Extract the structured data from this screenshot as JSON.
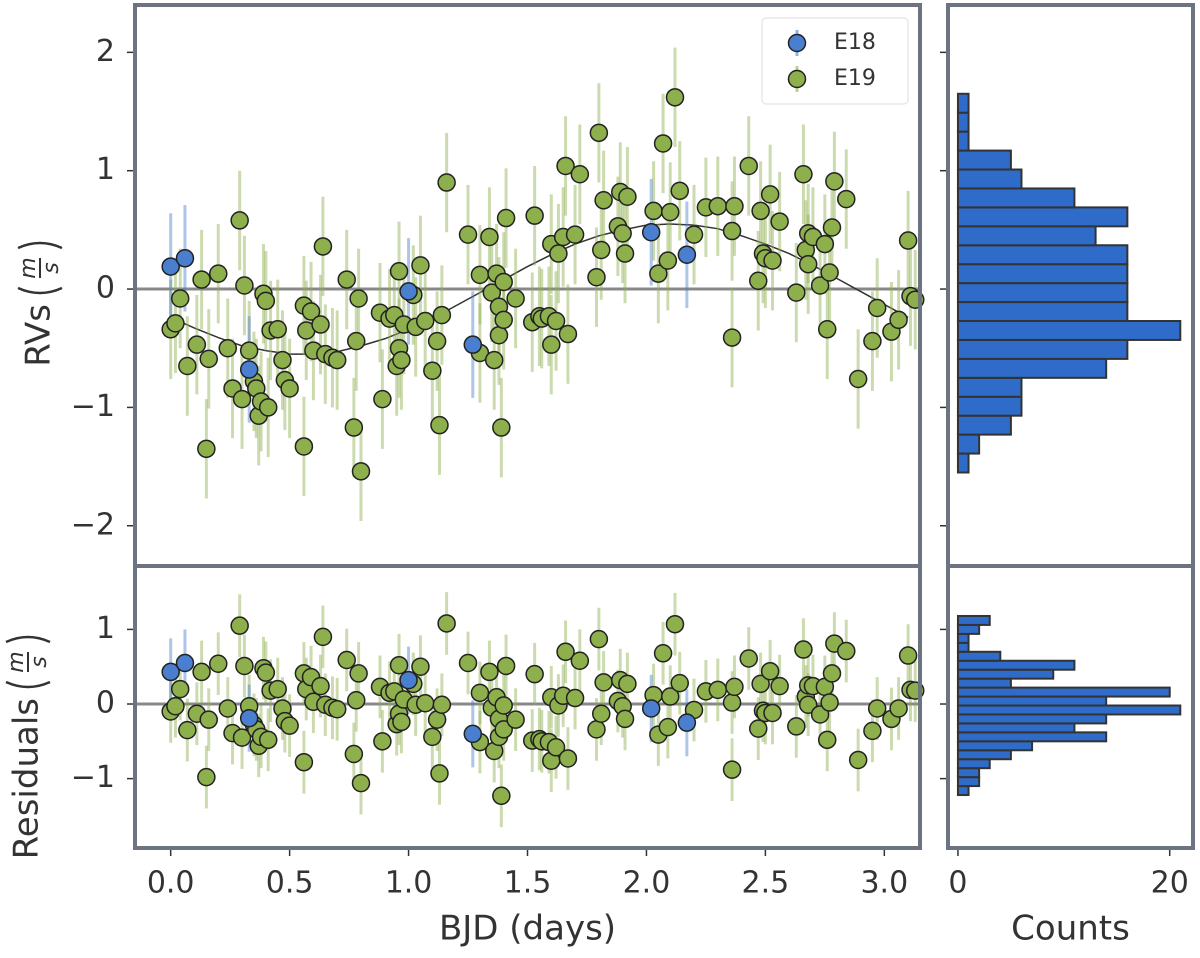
{
  "chart_data": [
    {
      "type": "scatter",
      "y_label": {
        "text": "RVs",
        "unit": [
          "m",
          "s"
        ]
      },
      "xlim": [
        -0.15,
        3.15
      ],
      "ylim": [
        -2.34,
        2.4
      ],
      "yticks": [
        {
          "value": -2,
          "label": "−2"
        },
        {
          "value": -1,
          "label": "−1"
        },
        0,
        1,
        2
      ],
      "reference_line": 0,
      "legend": "upper right",
      "model": {
        "color": "#333333",
        "x": [
          0,
          0.1,
          0.2,
          0.3,
          0.4,
          0.5,
          0.6,
          0.7,
          0.8,
          0.9,
          1.0,
          1.1,
          1.2,
          1.3,
          1.4,
          1.5,
          1.6,
          1.7,
          1.8,
          1.9,
          2.0,
          2.1,
          2.2,
          2.3,
          2.4,
          2.5,
          2.6,
          2.7,
          2.8,
          2.9,
          3.0,
          3.1
        ],
        "values": [
          -0.24,
          -0.33,
          -0.41,
          -0.48,
          -0.52,
          -0.55,
          -0.55,
          -0.53,
          -0.48,
          -0.42,
          -0.34,
          -0.25,
          -0.14,
          -0.03,
          0.08,
          0.19,
          0.29,
          0.38,
          0.45,
          0.5,
          0.54,
          0.55,
          0.54,
          0.51,
          0.45,
          0.38,
          0.3,
          0.2,
          0.09,
          -0.02,
          -0.13,
          -0.24
        ]
      },
      "series": [
        {
          "name": "E18",
          "color": "#4a7fcf",
          "yerr": 0.45,
          "x": [
            0.0,
            0.06,
            0.33,
            1.0,
            1.27,
            2.02,
            2.17
          ],
          "values": [
            0.19,
            0.26,
            -0.68,
            -0.02,
            -0.47,
            0.48,
            0.29
          ]
        },
        {
          "name": "E19",
          "color": "#8db04d",
          "yerr": 0.42,
          "x": [
            0.0,
            0.02,
            0.04,
            0.07,
            0.11,
            0.13,
            0.15,
            0.16,
            0.2,
            0.24,
            0.26,
            0.29,
            0.3,
            0.31,
            0.33,
            0.35,
            0.36,
            0.37,
            0.38,
            0.39,
            0.4,
            0.41,
            0.42,
            0.45,
            0.47,
            0.48,
            0.5,
            0.56,
            0.56,
            0.57,
            0.59,
            0.6,
            0.63,
            0.64,
            0.65,
            0.68,
            0.7,
            0.74,
            0.77,
            0.78,
            0.79,
            0.8,
            0.88,
            0.89,
            0.92,
            0.94,
            0.95,
            0.96,
            0.96,
            0.97,
            0.98,
            1.02,
            1.03,
            1.05,
            1.07,
            1.1,
            1.12,
            1.13,
            1.14,
            1.16,
            1.25,
            1.3,
            1.3,
            1.34,
            1.35,
            1.36,
            1.37,
            1.38,
            1.38,
            1.39,
            1.4,
            1.4,
            1.41,
            1.45,
            1.52,
            1.53,
            1.55,
            1.56,
            1.59,
            1.6,
            1.6,
            1.62,
            1.63,
            1.65,
            1.66,
            1.67,
            1.7,
            1.72,
            1.79,
            1.8,
            1.81,
            1.82,
            1.88,
            1.89,
            1.9,
            1.91,
            1.92,
            2.03,
            2.05,
            2.07,
            2.09,
            2.1,
            2.12,
            2.14,
            2.2,
            2.25,
            2.3,
            2.36,
            2.36,
            2.37,
            2.43,
            2.47,
            2.48,
            2.49,
            2.5,
            2.52,
            2.53,
            2.56,
            2.63,
            2.66,
            2.67,
            2.68,
            2.68,
            2.7,
            2.73,
            2.75,
            2.76,
            2.77,
            2.78,
            2.79,
            2.84,
            2.89,
            2.95,
            2.97,
            3.03,
            3.06,
            3.1,
            3.11,
            3.13
          ],
          "values": [
            -0.34,
            -0.29,
            -0.08,
            -0.65,
            -0.47,
            0.08,
            -1.35,
            -0.59,
            0.13,
            -0.5,
            -0.84,
            0.58,
            -0.93,
            0.03,
            -0.52,
            -0.78,
            -0.84,
            -1.07,
            -0.95,
            -0.04,
            -0.1,
            -1.0,
            -0.35,
            -0.34,
            -0.6,
            -0.77,
            -0.84,
            -1.33,
            -0.14,
            -0.35,
            -0.19,
            -0.52,
            -0.3,
            0.36,
            -0.55,
            -0.58,
            -0.6,
            0.08,
            -1.17,
            -0.44,
            -0.08,
            -1.54,
            -0.2,
            -0.93,
            -0.25,
            -0.22,
            -0.65,
            -0.5,
            0.15,
            -0.6,
            -0.3,
            -0.05,
            -0.32,
            0.2,
            -0.27,
            -0.69,
            -0.44,
            -1.15,
            -0.22,
            0.9,
            0.46,
            -0.54,
            0.12,
            0.44,
            -0.03,
            -0.6,
            0.13,
            -0.15,
            -0.39,
            -1.17,
            -0.26,
            0.06,
            0.6,
            -0.08,
            -0.28,
            0.62,
            -0.23,
            -0.25,
            -0.23,
            -0.47,
            0.38,
            -0.27,
            0.3,
            0.44,
            1.04,
            -0.38,
            0.46,
            0.97,
            0.1,
            1.32,
            0.33,
            0.75,
            0.53,
            0.82,
            0.47,
            0.3,
            0.78,
            0.66,
            0.13,
            1.23,
            0.24,
            0.65,
            1.62,
            0.83,
            0.46,
            0.69,
            0.7,
            0.49,
            -0.41,
            0.7,
            1.04,
            0.07,
            0.66,
            0.3,
            0.26,
            0.8,
            0.24,
            0.57,
            -0.03,
            0.97,
            0.33,
            0.21,
            0.47,
            0.44,
            0.03,
            0.38,
            -0.34,
            0.14,
            0.52,
            0.91,
            0.76,
            -0.76,
            -0.44,
            -0.16,
            -0.36,
            -0.26,
            0.41,
            -0.06,
            -0.09
          ]
        }
      ]
    },
    {
      "type": "scatter",
      "y_label": {
        "text": "Residuals",
        "unit": [
          "m",
          "s"
        ]
      },
      "x_label": "BJD (days)",
      "xlim": [
        -0.15,
        3.15
      ],
      "ylim": [
        -1.93,
        1.85
      ],
      "xticks": [
        {
          "value": 0,
          "label": "0.0"
        },
        {
          "value": 0.5,
          "label": "0.5"
        },
        {
          "value": 1,
          "label": "1.0"
        },
        {
          "value": 1.5,
          "label": "1.5"
        },
        {
          "value": 2,
          "label": "2.0"
        },
        {
          "value": 2.5,
          "label": "2.5"
        },
        {
          "value": 3,
          "label": "3.0"
        }
      ],
      "yticks": [
        {
          "value": -1,
          "label": "−1"
        },
        0,
        1
      ],
      "reference_line": 0,
      "series": [
        {
          "name": "E18",
          "color": "#4a7fcf",
          "yerr": 0.45,
          "x": [
            0.0,
            0.06,
            0.33,
            1.0,
            1.27,
            2.02,
            2.17
          ],
          "values": [
            0.43,
            0.55,
            -0.19,
            0.32,
            -0.4,
            -0.06,
            -0.25
          ]
        },
        {
          "name": "E19",
          "color": "#8db04d",
          "yerr": 0.42,
          "x": [
            0.0,
            0.02,
            0.04,
            0.07,
            0.11,
            0.13,
            0.15,
            0.16,
            0.2,
            0.24,
            0.26,
            0.29,
            0.3,
            0.31,
            0.33,
            0.35,
            0.36,
            0.37,
            0.38,
            0.39,
            0.4,
            0.41,
            0.42,
            0.45,
            0.47,
            0.48,
            0.5,
            0.56,
            0.56,
            0.57,
            0.59,
            0.6,
            0.63,
            0.64,
            0.65,
            0.68,
            0.7,
            0.74,
            0.77,
            0.78,
            0.79,
            0.8,
            0.88,
            0.89,
            0.92,
            0.94,
            0.95,
            0.96,
            0.96,
            0.97,
            0.98,
            1.02,
            1.03,
            1.05,
            1.07,
            1.1,
            1.12,
            1.13,
            1.14,
            1.16,
            1.25,
            1.3,
            1.3,
            1.34,
            1.35,
            1.36,
            1.37,
            1.38,
            1.38,
            1.39,
            1.4,
            1.4,
            1.41,
            1.45,
            1.52,
            1.53,
            1.55,
            1.56,
            1.59,
            1.6,
            1.6,
            1.62,
            1.63,
            1.65,
            1.66,
            1.67,
            1.7,
            1.72,
            1.79,
            1.8,
            1.81,
            1.82,
            1.88,
            1.89,
            1.9,
            1.91,
            1.92,
            2.03,
            2.05,
            2.07,
            2.09,
            2.1,
            2.12,
            2.14,
            2.2,
            2.25,
            2.3,
            2.36,
            2.36,
            2.37,
            2.43,
            2.47,
            2.48,
            2.49,
            2.5,
            2.52,
            2.53,
            2.56,
            2.63,
            2.66,
            2.67,
            2.68,
            2.68,
            2.7,
            2.73,
            2.75,
            2.76,
            2.77,
            2.78,
            2.79,
            2.84,
            2.89,
            2.95,
            2.97,
            3.03,
            3.06,
            3.1,
            3.11,
            3.13
          ],
          "values": [
            -0.1,
            -0.03,
            0.2,
            -0.35,
            -0.13,
            0.43,
            -0.98,
            -0.21,
            0.54,
            -0.06,
            -0.39,
            1.05,
            -0.45,
            0.51,
            -0.03,
            -0.28,
            -0.34,
            -0.56,
            -0.44,
            0.48,
            0.42,
            -0.48,
            0.18,
            0.2,
            -0.06,
            -0.23,
            -0.29,
            -0.78,
            0.41,
            0.2,
            0.36,
            0.03,
            0.24,
            0.9,
            -0.01,
            -0.05,
            -0.07,
            0.59,
            -0.67,
            0.05,
            0.41,
            -1.06,
            0.23,
            -0.5,
            0.15,
            0.17,
            -0.27,
            -0.13,
            0.52,
            -0.24,
            0.06,
            0.27,
            -0.01,
            0.5,
            0.01,
            -0.44,
            -0.21,
            -0.93,
            -0.01,
            1.08,
            0.55,
            -0.51,
            0.15,
            0.43,
            -0.05,
            -0.63,
            0.09,
            -0.2,
            -0.44,
            -1.23,
            -0.34,
            -0.02,
            0.51,
            -0.21,
            -0.49,
            0.4,
            -0.47,
            -0.5,
            -0.51,
            -0.76,
            0.09,
            -0.58,
            -0.02,
            0.11,
            0.7,
            -0.73,
            0.08,
            0.58,
            -0.34,
            0.87,
            -0.13,
            0.29,
            0.04,
            0.32,
            -0.03,
            -0.2,
            0.27,
            0.12,
            -0.41,
            0.68,
            -0.31,
            0.1,
            1.07,
            0.28,
            -0.08,
            0.17,
            0.19,
            0.02,
            -0.88,
            0.23,
            0.61,
            -0.33,
            0.27,
            -0.09,
            -0.12,
            0.44,
            -0.12,
            0.24,
            -0.3,
            0.73,
            0.1,
            -0.01,
            0.25,
            0.24,
            -0.14,
            0.23,
            -0.48,
            0.02,
            0.41,
            0.81,
            0.71,
            -0.75,
            -0.36,
            -0.06,
            -0.2,
            -0.06,
            0.65,
            0.19,
            0.18
          ]
        }
      ]
    },
    {
      "type": "histogram",
      "orientation": "horizontal",
      "color": "#2f6cc9",
      "xlim": [
        -0.94,
        22.2
      ],
      "ylim": [
        -2.34,
        2.4
      ],
      "yticks": [
        -2,
        -1,
        0,
        1,
        2
      ],
      "bins": [
        -1.55,
        -1.39,
        -1.23,
        -1.07,
        -0.91,
        -0.75,
        -0.59,
        -0.43,
        -0.27,
        -0.11,
        0.05,
        0.21,
        0.37,
        0.53,
        0.69,
        0.85,
        1.01,
        1.17,
        1.33,
        1.49,
        1.65
      ],
      "counts": [
        1,
        2,
        5,
        6,
        6,
        14,
        16,
        21,
        16,
        16,
        16,
        16,
        13,
        16,
        11,
        6,
        5,
        1,
        1,
        1
      ]
    },
    {
      "type": "histogram",
      "orientation": "horizontal",
      "color": "#2f6cc9",
      "x_label": "Counts",
      "xlim": [
        -0.94,
        22.2
      ],
      "ylim": [
        -1.93,
        1.85
      ],
      "yticks": [
        -1,
        0,
        1
      ],
      "xticks": [
        0,
        20
      ],
      "bins": [
        -1.22,
        -1.1,
        -0.98,
        -0.86,
        -0.74,
        -0.62,
        -0.5,
        -0.38,
        -0.26,
        -0.14,
        -0.02,
        0.1,
        0.22,
        0.34,
        0.46,
        0.58,
        0.7,
        0.82,
        0.94,
        1.06,
        1.18
      ],
      "counts": [
        1,
        2,
        2,
        3,
        5,
        7,
        14,
        11,
        14,
        21,
        14,
        20,
        5,
        9,
        11,
        4,
        1,
        1,
        2,
        3
      ]
    }
  ]
}
